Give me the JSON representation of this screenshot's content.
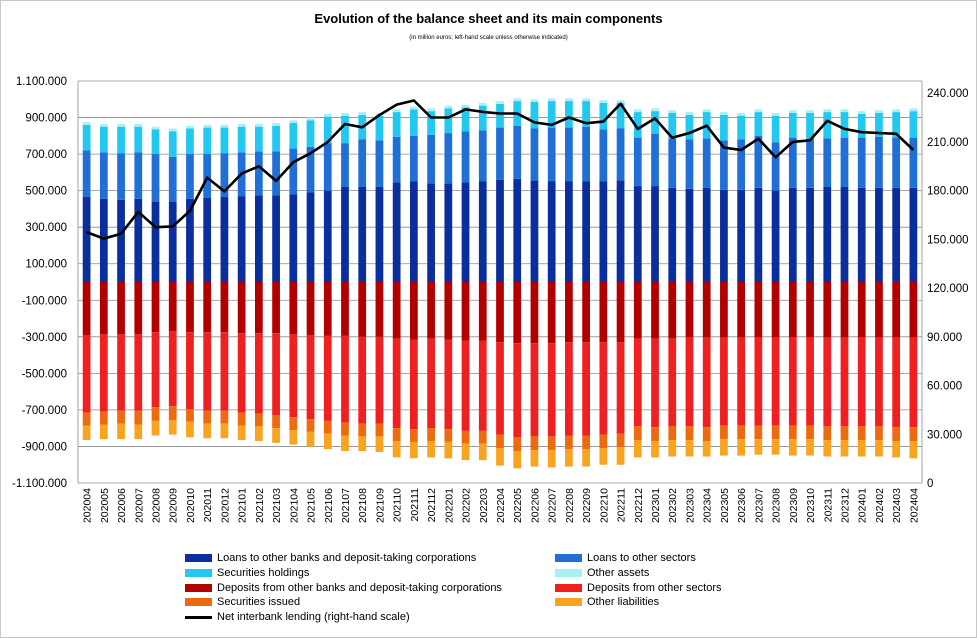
{
  "chart_data": {
    "type": "bar",
    "stacked": true,
    "title": "Evolution of the balance sheet and its main components",
    "subtitle": "(in million euros; left-hand scale unless otherwise indicated)",
    "categories": [
      "202004",
      "202005",
      "202006",
      "202007",
      "202008",
      "202009",
      "202010",
      "202011",
      "202012",
      "202101",
      "202102",
      "202103",
      "202104",
      "202105",
      "202106",
      "202107",
      "202108",
      "202109",
      "202110",
      "202111",
      "202112",
      "202201",
      "202202",
      "202203",
      "202204",
      "202205",
      "202206",
      "202207",
      "202208",
      "202209",
      "202210",
      "202211",
      "202212",
      "202301",
      "202302",
      "202303",
      "202304",
      "202305",
      "202306",
      "202307",
      "202308",
      "202309",
      "202310",
      "202311",
      "202312",
      "202401",
      "202402",
      "202403",
      "202404"
    ],
    "y_left": {
      "ylim": [
        -1100000,
        1100000
      ],
      "ticks": [
        1100000,
        900000,
        700000,
        500000,
        300000,
        100000,
        -100000,
        -300000,
        -500000,
        -700000,
        -900000,
        -1100000
      ],
      "tick_labels": [
        "1.100.000",
        "900.000",
        "700.000",
        "500.000",
        "300.000",
        "100.000",
        "-100.000",
        "-300.000",
        "-500.000",
        "-700.000",
        "-900.000",
        "-1.100.000"
      ]
    },
    "y_right": {
      "ylim": [
        0,
        247500
      ],
      "ticks": [
        240000,
        210000,
        180000,
        150000,
        120000,
        90000,
        60000,
        30000,
        0
      ],
      "tick_labels": [
        "240.000",
        "210.000",
        "180.000",
        "150.000",
        "120.000",
        "90.000",
        "60.000",
        "30.000",
        "0"
      ]
    },
    "series": [
      {
        "name": "Loans to other banks and deposit-taking corporations",
        "color": "#0a2f9c",
        "stack": "assets",
        "values": [
          465000,
          455000,
          450000,
          455000,
          440000,
          440000,
          455000,
          460000,
          465000,
          470000,
          475000,
          475000,
          480000,
          490000,
          500000,
          520000,
          520000,
          520000,
          545000,
          550000,
          540000,
          540000,
          545000,
          550000,
          560000,
          565000,
          555000,
          550000,
          550000,
          550000,
          550000,
          555000,
          525000,
          525000,
          515000,
          510000,
          515000,
          505000,
          505000,
          515000,
          500000,
          515000,
          515000,
          520000,
          520000,
          515000,
          515000,
          515000,
          515000
        ]
      },
      {
        "name": "Loans to other sectors",
        "color": "#1f6fd6",
        "stack": "assets",
        "values": [
          255000,
          255000,
          255000,
          255000,
          260000,
          245000,
          245000,
          240000,
          240000,
          240000,
          240000,
          240000,
          250000,
          250000,
          260000,
          240000,
          260000,
          255000,
          250000,
          250000,
          265000,
          275000,
          280000,
          280000,
          285000,
          290000,
          285000,
          295000,
          295000,
          300000,
          285000,
          285000,
          265000,
          285000,
          270000,
          270000,
          270000,
          270000,
          275000,
          285000,
          265000,
          275000,
          270000,
          265000,
          270000,
          275000,
          280000,
          275000,
          275000
        ]
      },
      {
        "name": "Securities holdings",
        "color": "#22c8f0",
        "stack": "assets",
        "values": [
          140000,
          140000,
          145000,
          140000,
          135000,
          140000,
          140000,
          145000,
          140000,
          140000,
          135000,
          140000,
          140000,
          145000,
          145000,
          150000,
          135000,
          135000,
          135000,
          145000,
          130000,
          135000,
          130000,
          135000,
          130000,
          135000,
          145000,
          145000,
          145000,
          140000,
          145000,
          140000,
          140000,
          125000,
          140000,
          135000,
          145000,
          140000,
          130000,
          130000,
          145000,
          135000,
          140000,
          145000,
          140000,
          130000,
          130000,
          140000,
          145000
        ]
      },
      {
        "name": "Other assets",
        "color": "#a8f0f8",
        "stack": "assets",
        "values": [
          15000,
          15000,
          15000,
          15000,
          15000,
          15000,
          15000,
          15000,
          15000,
          15000,
          15000,
          15000,
          15000,
          15000,
          15000,
          15000,
          15000,
          15000,
          15000,
          15000,
          15000,
          15000,
          15000,
          15000,
          15000,
          15000,
          15000,
          15000,
          15000,
          15000,
          15000,
          15000,
          15000,
          15000,
          15000,
          15000,
          15000,
          15000,
          15000,
          15000,
          15000,
          15000,
          15000,
          15000,
          15000,
          15000,
          15000,
          15000,
          15000
        ]
      },
      {
        "name": "Deposits from other banks and deposit-taking corporations",
        "color": "#b20000",
        "stack": "liabilities",
        "values": [
          -290000,
          -285000,
          -285000,
          -285000,
          -275000,
          -270000,
          -275000,
          -275000,
          -275000,
          -280000,
          -280000,
          -280000,
          -285000,
          -290000,
          -295000,
          -295000,
          -300000,
          -300000,
          -310000,
          -315000,
          -310000,
          -315000,
          -320000,
          -320000,
          -330000,
          -335000,
          -335000,
          -335000,
          -330000,
          -330000,
          -330000,
          -330000,
          -310000,
          -310000,
          -310000,
          -305000,
          -305000,
          -305000,
          -305000,
          -305000,
          -305000,
          -305000,
          -305000,
          -305000,
          -305000,
          -305000,
          -305000,
          -305000,
          -305000
        ]
      },
      {
        "name": "Deposits from other sectors",
        "color": "#f02020",
        "stack": "liabilities",
        "values": [
          -425000,
          -425000,
          -420000,
          -420000,
          -410000,
          -410000,
          -420000,
          -430000,
          -430000,
          -435000,
          -440000,
          -450000,
          -455000,
          -460000,
          -465000,
          -475000,
          -475000,
          -475000,
          -490000,
          -490000,
          -490000,
          -490000,
          -495000,
          -495000,
          -505000,
          -515000,
          -510000,
          -510000,
          -510000,
          -510000,
          -505000,
          -500000,
          -480000,
          -485000,
          -480000,
          -485000,
          -490000,
          -480000,
          -480000,
          -480000,
          -480000,
          -480000,
          -480000,
          -485000,
          -485000,
          -485000,
          -485000,
          -490000,
          -490000
        ]
      },
      {
        "name": "Securities issued",
        "color": "#ee6a10",
        "stack": "liabilities",
        "values": [
          -70000,
          -70000,
          -70000,
          -75000,
          -75000,
          -75000,
          -70000,
          -70000,
          -70000,
          -70000,
          -70000,
          -70000,
          -70000,
          -70000,
          -70000,
          -70000,
          -70000,
          -70000,
          -70000,
          -70000,
          -70000,
          -70000,
          -70000,
          -70000,
          -75000,
          -75000,
          -75000,
          -75000,
          -75000,
          -75000,
          -75000,
          -75000,
          -75000,
          -75000,
          -75000,
          -75000,
          -75000,
          -75000,
          -75000,
          -75000,
          -75000,
          -75000,
          -75000,
          -75000,
          -75000,
          -75000,
          -75000,
          -75000,
          -75000
        ]
      },
      {
        "name": "Other liabilities",
        "color": "#f8a420",
        "stack": "liabilities",
        "values": [
          -80000,
          -80000,
          -85000,
          -80000,
          -80000,
          -80000,
          -85000,
          -80000,
          -80000,
          -80000,
          -80000,
          -80000,
          -80000,
          -80000,
          -85000,
          -85000,
          -80000,
          -85000,
          -90000,
          -90000,
          -90000,
          -90000,
          -90000,
          -90000,
          -95000,
          -95000,
          -90000,
          -95000,
          -95000,
          -95000,
          -90000,
          -95000,
          -95000,
          -90000,
          -90000,
          -90000,
          -85000,
          -90000,
          -90000,
          -85000,
          -85000,
          -90000,
          -90000,
          -90000,
          -90000,
          -90000,
          -90000,
          -90000,
          -95000
        ]
      }
    ],
    "line": {
      "name": "Net interbank lending (right-hand scale)",
      "color": "#000000",
      "axis": "right",
      "values": [
        154500,
        150500,
        153500,
        167000,
        157500,
        158000,
        167500,
        188000,
        179500,
        190500,
        195000,
        186000,
        197500,
        203000,
        210000,
        221000,
        219000,
        226500,
        233000,
        235500,
        225000,
        225000,
        230000,
        228500,
        227500,
        227500,
        222000,
        220500,
        225000,
        221500,
        222500,
        233500,
        218000,
        224500,
        212500,
        215500,
        220000,
        206500,
        205000,
        212000,
        200500,
        210000,
        211000,
        223000,
        218000,
        216000,
        215500,
        215000,
        205000
      ]
    },
    "legend": {
      "position": "bottom",
      "columns": 2
    }
  }
}
